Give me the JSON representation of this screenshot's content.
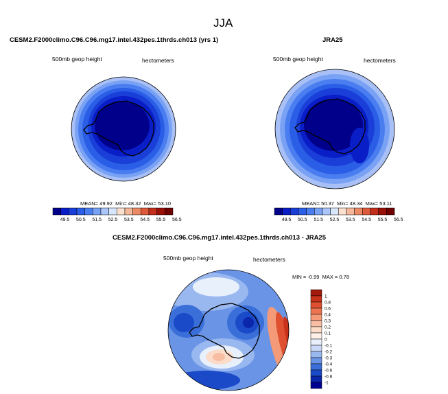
{
  "figure": {
    "season": "JJA"
  },
  "panels": [
    {
      "title": "CESM2.F2000climo.C96.C96.mg17.intel.432pes.1thrds.ch013 (yrs 1)",
      "left_label": "500mb geop height",
      "right_label": "hectometers",
      "stats": {
        "mean_label": "MEAN=",
        "mean": "49.92",
        "min_label": "Min=",
        "min": "48.32",
        "max_label": "Max=",
        "max": "53.10"
      }
    },
    {
      "title": "JRA25",
      "left_label": "500mb geop height",
      "right_label": "hectometers",
      "stats": {
        "mean_label": "MEAN=",
        "mean": "50.37",
        "min_label": "Min=",
        "min": "48.34",
        "max_label": "Max=",
        "max": "53.11"
      }
    },
    {
      "title": "CESM2.F2000climo.C96.C96.mg17.intel.432pes.1thrds.ch013 - JRA25",
      "left_label": "500mb geop height",
      "right_label": "hectometers",
      "stats": {
        "min_label": "MIN =",
        "min": "-0.99",
        "max_label": "MAX =",
        "max": "0.78"
      }
    }
  ],
  "chart_data": [
    {
      "type": "heatmap",
      "projection": "south-polar-stereographic",
      "variable": "500mb geop height",
      "units": "hectometers",
      "summary": {
        "mean": 49.92,
        "min": 48.32,
        "max": 53.1
      },
      "colorbar": {
        "orientation": "horizontal",
        "ticks": [
          "49.5",
          "50.5",
          "51.5",
          "52.5",
          "53.5",
          "54.5",
          "55.5",
          "56.5"
        ],
        "colors": [
          "#00008b",
          "#0a1ec8",
          "#1a3ed8",
          "#2a5ee6",
          "#4a7ef0",
          "#7aa2f4",
          "#aac6fa",
          "#d8e6fc",
          "#fbe2d0",
          "#f6b89a",
          "#ec8a66",
          "#de5a3a",
          "#c42e1c",
          "#9a1008",
          "#6e0000"
        ]
      }
    },
    {
      "type": "heatmap",
      "projection": "south-polar-stereographic",
      "variable": "500mb geop height",
      "units": "hectometers",
      "summary": {
        "mean": 50.37,
        "min": 48.34,
        "max": 53.11
      },
      "colorbar": {
        "orientation": "horizontal",
        "ticks": [
          "49.5",
          "50.5",
          "51.5",
          "52.5",
          "53.5",
          "54.5",
          "55.5",
          "56.5"
        ],
        "colors": [
          "#00008b",
          "#0a1ec8",
          "#1a3ed8",
          "#2a5ee6",
          "#4a7ef0",
          "#7aa2f4",
          "#aac6fa",
          "#d8e6fc",
          "#fbe2d0",
          "#f6b89a",
          "#ec8a66",
          "#de5a3a",
          "#c42e1c",
          "#9a1008",
          "#6e0000"
        ]
      }
    },
    {
      "type": "heatmap",
      "projection": "south-polar-stereographic",
      "variable": "500mb geop height",
      "units": "hectometers",
      "summary": {
        "min": -0.99,
        "max": 0.78
      },
      "colorbar": {
        "orientation": "vertical",
        "ticks": [
          "1",
          "0.8",
          "0.6",
          "0.4",
          "0.3",
          "0.2",
          "0.1",
          "0",
          "-0.1",
          "-0.2",
          "-0.3",
          "-0.4",
          "-0.6",
          "-0.8",
          "-1"
        ],
        "colors": [
          "#a11a0a",
          "#c8321a",
          "#de5030",
          "#ec7450",
          "#f49a78",
          "#f8bea4",
          "#fcdcc8",
          "#fff0e8",
          "#e8f0fc",
          "#c8d8f6",
          "#9ab8f0",
          "#6a94e6",
          "#3a6ed8",
          "#1a4ac8",
          "#0a26aa",
          "#000090"
        ]
      }
    }
  ]
}
